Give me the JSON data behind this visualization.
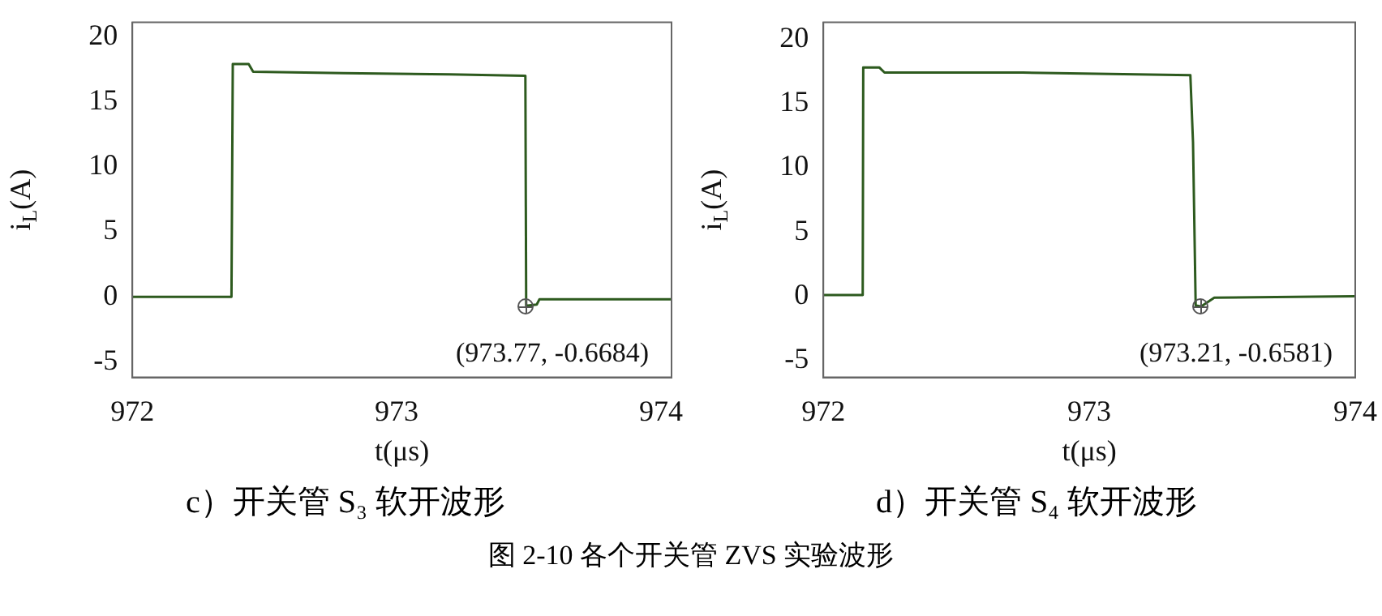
{
  "chart_data": [
    {
      "type": "line",
      "title": "c）开关管 S₃ 软开波形",
      "xlabel": "t(μs)",
      "ylabel": "i$_{L}$(A)",
      "xlim": [
        972,
        974.04
      ],
      "ylim": [
        -6.2,
        21.1
      ],
      "xticks": [
        972,
        973,
        974
      ],
      "yticks": [
        -5,
        0,
        5,
        10,
        15,
        20
      ],
      "grid": false,
      "legend": false,
      "series": [
        {
          "color": "#2d5a1e",
          "x": [
            972,
            972.375,
            972.38,
            972.44,
            972.457,
            972.8,
            973.2,
            973.487,
            973.49,
            973.53,
            973.54,
            974.04
          ],
          "values": [
            0,
            0,
            17.9,
            17.9,
            17.3,
            17.2,
            17.1,
            17.0,
            -0.7,
            -0.6,
            -0.2,
            -0.2
          ]
        }
      ],
      "annotations": [
        "(973.77, -0.6684)",
        "图 2-10 各个开关管 ZVS 实验波形"
      ]
    },
    {
      "type": "line",
      "title": "d）开关管 S₄ 软开波形",
      "xlabel": "t(μs)",
      "ylabel": "i$_{L}$(A)",
      "xlim": [
        972,
        974
      ],
      "ylim": [
        -6.3,
        21.3
      ],
      "xticks": [
        972,
        973,
        974
      ],
      "yticks": [
        -5,
        0,
        5,
        10,
        15,
        20
      ],
      "grid": false,
      "legend": false,
      "series": [
        {
          "color": "#2d5a1e",
          "x": [
            972,
            972.148,
            972.15,
            972.21,
            972.23,
            972.75,
            973.38,
            973.39,
            973.4,
            973.42,
            973.47,
            974
          ],
          "values": [
            0.1,
            0.1,
            17.8,
            17.8,
            17.4,
            17.4,
            17.2,
            12,
            -0.7,
            -0.8,
            -0.1,
            0
          ]
        }
      ],
      "annotations": [
        "(973.21, -0.6581)"
      ]
    }
  ]
}
